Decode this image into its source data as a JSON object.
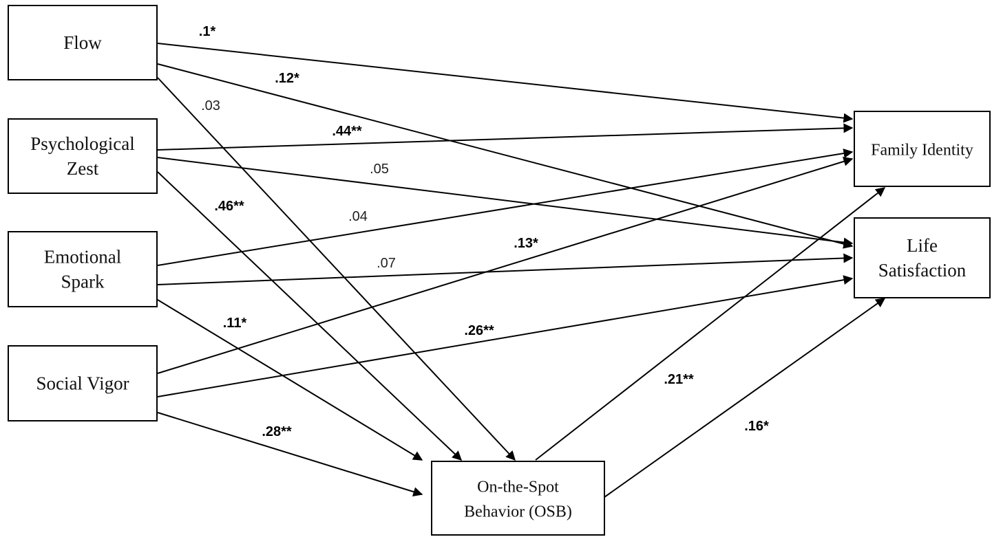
{
  "nodes": {
    "flow": {
      "lines": [
        "Flow"
      ]
    },
    "zest": {
      "lines": [
        "Psychological",
        "Zest"
      ]
    },
    "spark": {
      "lines": [
        "Emotional",
        "Spark"
      ]
    },
    "vigor": {
      "lines": [
        "Social  Vigor"
      ]
    },
    "osb": {
      "lines": [
        "On-the-Spot",
        "Behavior (OSB)"
      ]
    },
    "family": {
      "lines": [
        "Family Identity"
      ]
    },
    "life": {
      "lines": [
        "Life",
        "Satisfaction"
      ]
    }
  },
  "paths": [
    {
      "id": "flow-family",
      "from": "flow",
      "to": "family",
      "coef": ".1*",
      "significant": true
    },
    {
      "id": "flow-life",
      "from": "flow",
      "to": "life",
      "coef": ".12*",
      "significant": true
    },
    {
      "id": "flow-osb",
      "from": "flow",
      "to": "osb",
      "coef": ".03",
      "significant": false
    },
    {
      "id": "zest-family",
      "from": "zest",
      "to": "family",
      "coef": ".44**",
      "significant": true
    },
    {
      "id": "zest-life",
      "from": "zest",
      "to": "life",
      "coef": ".05",
      "significant": false
    },
    {
      "id": "zest-osb",
      "from": "zest",
      "to": "osb",
      "coef": ".46**",
      "significant": true
    },
    {
      "id": "spark-family",
      "from": "spark",
      "to": "family",
      "coef": ".04",
      "significant": false
    },
    {
      "id": "spark-life",
      "from": "spark",
      "to": "life",
      "coef": ".07",
      "significant": false
    },
    {
      "id": "spark-osb",
      "from": "spark",
      "to": "osb",
      "coef": ".11*",
      "significant": true
    },
    {
      "id": "vigor-family",
      "from": "vigor",
      "to": "family",
      "coef": ".13*",
      "significant": true
    },
    {
      "id": "vigor-life",
      "from": "vigor",
      "to": "life",
      "coef": ".26**",
      "significant": true
    },
    {
      "id": "vigor-osb",
      "from": "vigor",
      "to": "osb",
      "coef": ".28**",
      "significant": true
    },
    {
      "id": "osb-family",
      "from": "osb",
      "to": "family",
      "coef": ".21**",
      "significant": true
    },
    {
      "id": "osb-life",
      "from": "osb",
      "to": "life",
      "coef": ".16*",
      "significant": true
    }
  ]
}
